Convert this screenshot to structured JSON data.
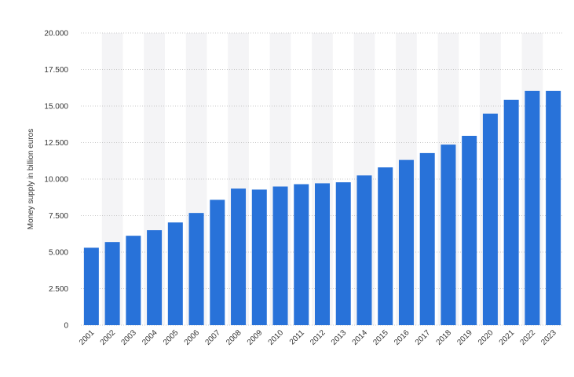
{
  "chart_data": {
    "type": "bar",
    "title": "",
    "xlabel": "",
    "ylabel": "Money supply in billion euros",
    "categories": [
      "2001",
      "2002",
      "2003",
      "2004",
      "2005",
      "2006",
      "2007",
      "2008",
      "2009",
      "2010",
      "2011",
      "2012",
      "2013",
      "2014",
      "2015",
      "2016",
      "2017",
      "2018",
      "2019",
      "2020",
      "2021",
      "2022",
      "2023"
    ],
    "values": [
      5300,
      5690,
      6120,
      6500,
      7030,
      7680,
      8580,
      9350,
      9280,
      9490,
      9650,
      9710,
      9780,
      10250,
      10800,
      11310,
      11780,
      12360,
      12960,
      14480,
      15430,
      16030,
      16030
    ],
    "ylim": [
      0,
      20000
    ],
    "yticks": [
      0,
      2500,
      5000,
      7500,
      10000,
      12500,
      15000,
      17500,
      20000
    ],
    "ytick_labels": [
      "0",
      "2.500",
      "5.000",
      "7.500",
      "10.000",
      "12.500",
      "15.000",
      "17.500",
      "20.000"
    ],
    "grid": true,
    "legend": "none",
    "bar_color": "#2872d9",
    "band_color": "#f4f4f6",
    "grid_color": "#c8c8c8"
  }
}
